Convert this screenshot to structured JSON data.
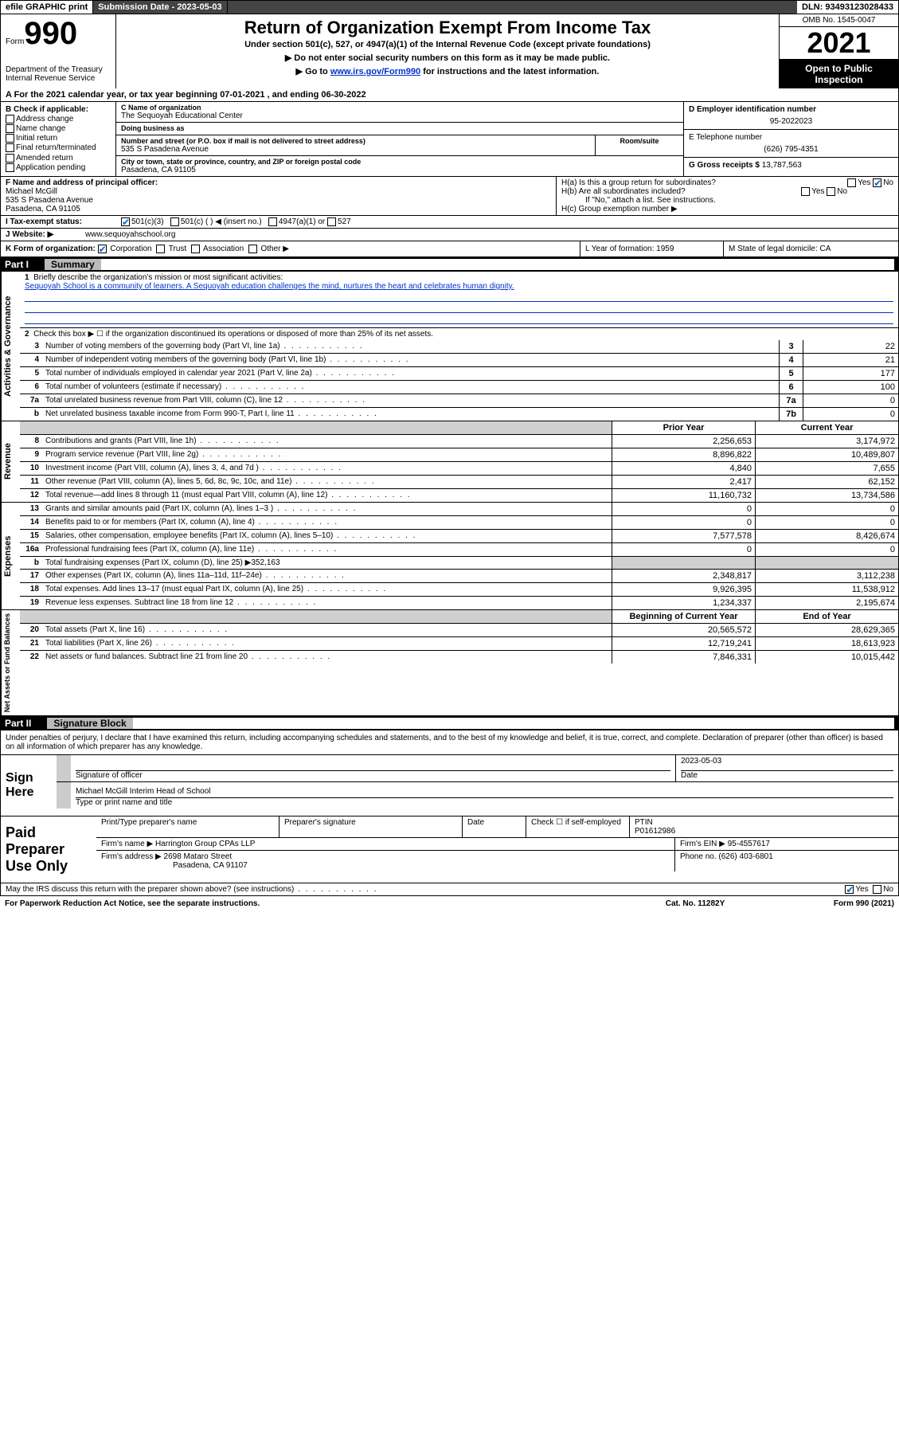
{
  "colors": {
    "background": "#ffffff",
    "text": "#000000",
    "link": "#0033cc",
    "header_dark": "#444444",
    "black_bar": "#000000",
    "shade": "#d0d0d0",
    "check": "#0066cc"
  },
  "topbar": {
    "efile": "efile GRAPHIC print",
    "sub_label": "Submission Date - 2023-05-03",
    "dln": "DLN: 93493123028433"
  },
  "header": {
    "form_prefix": "Form",
    "form_number": "990",
    "dept": "Department of the Treasury",
    "irs": "Internal Revenue Service",
    "title": "Return of Organization Exempt From Income Tax",
    "sub1": "Under section 501(c), 527, or 4947(a)(1) of the Internal Revenue Code (except private foundations)",
    "sub2_prefix": "▶ Do not enter social security numbers on this form as it may be made public.",
    "sub3_prefix": "▶ Go to ",
    "sub3_link": "www.irs.gov/Form990",
    "sub3_suffix": " for instructions and the latest information.",
    "omb": "OMB No. 1545-0047",
    "year": "2021",
    "open": "Open to Public Inspection"
  },
  "sectionA": "A For the 2021 calendar year, or tax year beginning 07-01-2021   , and ending 06-30-2022",
  "sectionB": {
    "label": "B Check if applicable:",
    "opts": [
      "Address change",
      "Name change",
      "Initial return",
      "Final return/terminated",
      "Amended return",
      "Application pending"
    ]
  },
  "sectionC": {
    "name_label": "C Name of organization",
    "name": "The Sequoyah Educational Center",
    "dba_label": "Doing business as",
    "dba": "",
    "street_label": "Number and street (or P.O. box if mail is not delivered to street address)",
    "room_label": "Room/suite",
    "street": "535 S Pasadena Avenue",
    "city_label": "City or town, state or province, country, and ZIP or foreign postal code",
    "city": "Pasadena, CA  91105"
  },
  "sectionD": {
    "label": "D Employer identification number",
    "value": "95-2022023"
  },
  "sectionE": {
    "label": "E Telephone number",
    "value": "(626) 795-4351"
  },
  "sectionG": {
    "label": "G Gross receipts $",
    "value": "13,787,563"
  },
  "sectionF": {
    "label": "F Name and address of principal officer:",
    "name": "Michael McGill",
    "addr1": "535 S Pasadena Avenue",
    "addr2": "Pasadena, CA  91105"
  },
  "sectionH": {
    "a": "H(a)  Is this a group return for subordinates?",
    "a_yes": "Yes",
    "a_no": "No",
    "b": "H(b)  Are all subordinates included?",
    "b_note": "If \"No,\" attach a list. See instructions.",
    "c": "H(c)  Group exemption number ▶"
  },
  "rowI": {
    "label": "I   Tax-exempt status:",
    "opt1": "501(c)(3)",
    "opt2": "501(c) (  ) ◀ (insert no.)",
    "opt3": "4947(a)(1) or",
    "opt4": "527"
  },
  "rowJ": {
    "label": "J   Website: ▶",
    "value": "www.sequoyahschool.org"
  },
  "rowK": {
    "label": "K Form of organization:",
    "opts": [
      "Corporation",
      "Trust",
      "Association",
      "Other ▶"
    ],
    "L": "L Year of formation: 1959",
    "M": "M State of legal domicile: CA"
  },
  "part1": {
    "header_num": "Part I",
    "header_title": "Summary",
    "vtab1": "Activities & Governance",
    "vtab2": "Revenue",
    "vtab3": "Expenses",
    "vtab4": "Net Assets or Fund Balances",
    "line1": "Briefly describe the organization's mission or most significant activities:",
    "mission": "Sequoyah School is a community of learners. A Sequoyah education challenges the mind, nurtures the heart and celebrates human dignity.",
    "line2": "Check this box ▶ ☐  if the organization discontinued its operations or disposed of more than 25% of its net assets.",
    "rows_gov": [
      {
        "n": "3",
        "d": "Number of voting members of the governing body (Part VI, line 1a)",
        "bn": "3",
        "v": "22"
      },
      {
        "n": "4",
        "d": "Number of independent voting members of the governing body (Part VI, line 1b)",
        "bn": "4",
        "v": "21"
      },
      {
        "n": "5",
        "d": "Total number of individuals employed in calendar year 2021 (Part V, line 2a)",
        "bn": "5",
        "v": "177"
      },
      {
        "n": "6",
        "d": "Total number of volunteers (estimate if necessary)",
        "bn": "6",
        "v": "100"
      },
      {
        "n": "7a",
        "d": "Total unrelated business revenue from Part VIII, column (C), line 12",
        "bn": "7a",
        "v": "0"
      },
      {
        "n": "b",
        "d": "Net unrelated business taxable income from Form 990-T, Part I, line 11",
        "bn": "7b",
        "v": "0"
      }
    ],
    "col_prior": "Prior Year",
    "col_current": "Current Year",
    "col_boy": "Beginning of Current Year",
    "col_eoy": "End of Year",
    "rows_rev": [
      {
        "n": "8",
        "d": "Contributions and grants (Part VIII, line 1h)",
        "p": "2,256,653",
        "c": "3,174,972"
      },
      {
        "n": "9",
        "d": "Program service revenue (Part VIII, line 2g)",
        "p": "8,896,822",
        "c": "10,489,807"
      },
      {
        "n": "10",
        "d": "Investment income (Part VIII, column (A), lines 3, 4, and 7d )",
        "p": "4,840",
        "c": "7,655"
      },
      {
        "n": "11",
        "d": "Other revenue (Part VIII, column (A), lines 5, 6d, 8c, 9c, 10c, and 11e)",
        "p": "2,417",
        "c": "62,152"
      },
      {
        "n": "12",
        "d": "Total revenue—add lines 8 through 11 (must equal Part VIII, column (A), line 12)",
        "p": "11,160,732",
        "c": "13,734,586"
      }
    ],
    "rows_exp": [
      {
        "n": "13",
        "d": "Grants and similar amounts paid (Part IX, column (A), lines 1–3 )",
        "p": "0",
        "c": "0"
      },
      {
        "n": "14",
        "d": "Benefits paid to or for members (Part IX, column (A), line 4)",
        "p": "0",
        "c": "0"
      },
      {
        "n": "15",
        "d": "Salaries, other compensation, employee benefits (Part IX, column (A), lines 5–10)",
        "p": "7,577,578",
        "c": "8,426,674"
      },
      {
        "n": "16a",
        "d": "Professional fundraising fees (Part IX, column (A), line 11e)",
        "p": "0",
        "c": "0"
      },
      {
        "n": "b",
        "d": "Total fundraising expenses (Part IX, column (D), line 25) ▶352,163",
        "p": "",
        "c": ""
      },
      {
        "n": "17",
        "d": "Other expenses (Part IX, column (A), lines 11a–11d, 11f–24e)",
        "p": "2,348,817",
        "c": "3,112,238"
      },
      {
        "n": "18",
        "d": "Total expenses. Add lines 13–17 (must equal Part IX, column (A), line 25)",
        "p": "9,926,395",
        "c": "11,538,912"
      },
      {
        "n": "19",
        "d": "Revenue less expenses. Subtract line 18 from line 12",
        "p": "1,234,337",
        "c": "2,195,674"
      }
    ],
    "rows_net": [
      {
        "n": "20",
        "d": "Total assets (Part X, line 16)",
        "p": "20,565,572",
        "c": "28,629,365"
      },
      {
        "n": "21",
        "d": "Total liabilities (Part X, line 26)",
        "p": "12,719,241",
        "c": "18,613,923"
      },
      {
        "n": "22",
        "d": "Net assets or fund balances. Subtract line 21 from line 20",
        "p": "7,846,331",
        "c": "10,015,442"
      }
    ]
  },
  "part2": {
    "header_num": "Part II",
    "header_title": "Signature Block",
    "intro": "Under penalties of perjury, I declare that I have examined this return, including accompanying schedules and statements, and to the best of my knowledge and belief, it is true, correct, and complete. Declaration of preparer (other than officer) is based on all information of which preparer has any knowledge.",
    "sign_here": "Sign Here",
    "sig_officer_label": "Signature of officer",
    "sig_date_label": "Date",
    "sig_date": "2023-05-03",
    "sig_name": "Michael McGill Interim Head of School",
    "sig_name_label": "Type or print name and title"
  },
  "paid": {
    "title": "Paid Preparer Use Only",
    "h_name": "Print/Type preparer's name",
    "h_sig": "Preparer's signature",
    "h_date": "Date",
    "h_check": "Check ☐ if self-employed",
    "h_ptin": "PTIN",
    "ptin": "P01612986",
    "firm_name_label": "Firm's name    ▶",
    "firm_name": "Harrington Group CPAs LLP",
    "firm_ein_label": "Firm's EIN ▶",
    "firm_ein": "95-4557617",
    "firm_addr_label": "Firm's address ▶",
    "firm_addr1": "2698 Mataro Street",
    "firm_addr2": "Pasadena, CA  91107",
    "phone_label": "Phone no.",
    "phone": "(626) 403-6801"
  },
  "footer": {
    "discuss": "May the IRS discuss this return with the preparer shown above? (see instructions)",
    "yes": "Yes",
    "no": "No",
    "paperwork": "For Paperwork Reduction Act Notice, see the separate instructions.",
    "cat": "Cat. No. 11282Y",
    "form": "Form 990 (2021)"
  }
}
